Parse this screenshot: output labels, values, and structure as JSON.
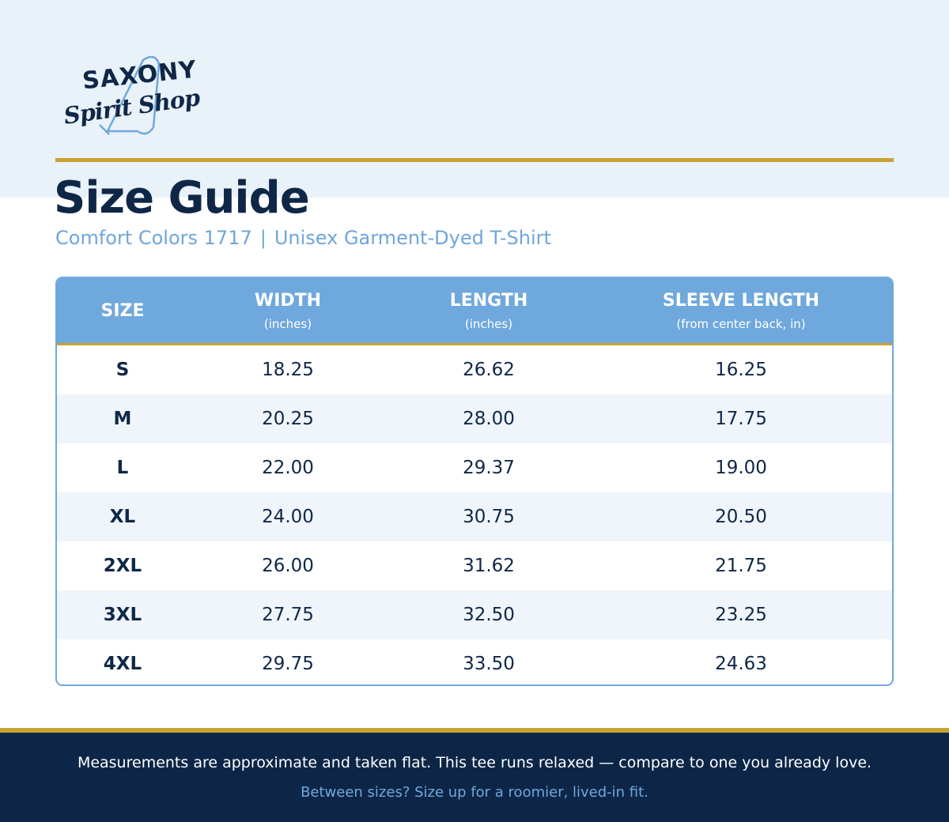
{
  "logo": {
    "line1": "SAXONY",
    "line2": "Spirit Shop"
  },
  "header": {
    "title": "Size Guide",
    "subtitle_left": "Comfort Colors 1717",
    "separator": "|",
    "subtitle_right": "Unisex Garment-Dyed T-Shirt"
  },
  "table": {
    "columns": [
      {
        "label": "SIZE"
      },
      {
        "label": "WIDTH",
        "unit": "(inches)"
      },
      {
        "label": "LENGTH",
        "unit": "(inches)"
      },
      {
        "label": "SLEEVE LENGTH",
        "unit": "(from center back, in)"
      }
    ],
    "rows": [
      [
        "S",
        "18.25",
        "26.62",
        "16.25"
      ],
      [
        "M",
        "20.25",
        "28.00",
        "17.75"
      ],
      [
        "L",
        "22.00",
        "29.37",
        "19.00"
      ],
      [
        "XL",
        "24.00",
        "30.75",
        "20.50"
      ],
      [
        "2XL",
        "26.00",
        "31.62",
        "21.75"
      ],
      [
        "3XL",
        "27.75",
        "32.50",
        "23.25"
      ],
      [
        "4XL",
        "29.75",
        "33.50",
        "24.63"
      ]
    ]
  },
  "footer": {
    "note": "Measurements are approximate and taken flat. This tee runs relaxed — compare to one you already love.",
    "tip": "Between sizes? Size up for a roomier, lived-in fit."
  }
}
